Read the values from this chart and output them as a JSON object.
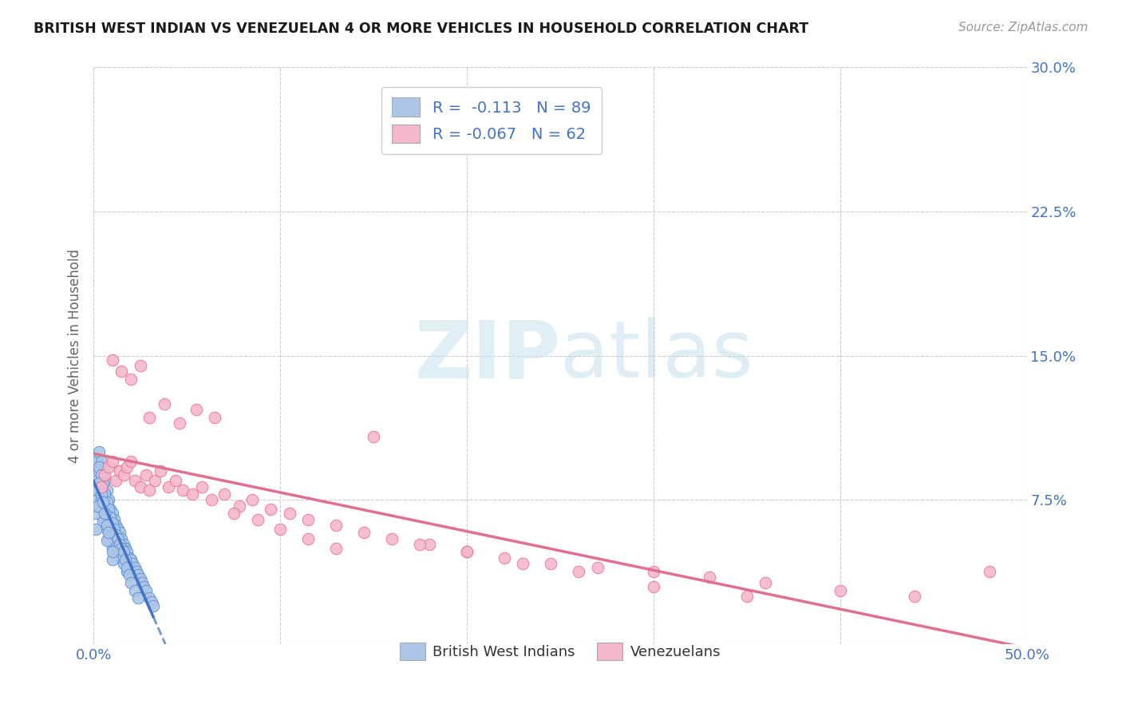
{
  "title": "BRITISH WEST INDIAN VS VENEZUELAN 4 OR MORE VEHICLES IN HOUSEHOLD CORRELATION CHART",
  "source": "Source: ZipAtlas.com",
  "ylabel": "4 or more Vehicles in Household",
  "xlim": [
    0.0,
    0.5
  ],
  "ylim": [
    0.0,
    0.3
  ],
  "xticks": [
    0.0,
    0.1,
    0.2,
    0.3,
    0.4,
    0.5
  ],
  "xticklabels": [
    "0.0%",
    "",
    "",
    "",
    "",
    "50.0%"
  ],
  "yticks": [
    0.0,
    0.075,
    0.15,
    0.225,
    0.3
  ],
  "yticklabels": [
    "",
    "7.5%",
    "15.0%",
    "22.5%",
    "30.0%"
  ],
  "blue_R": -0.113,
  "blue_N": 89,
  "pink_R": -0.067,
  "pink_N": 62,
  "blue_color": "#adc6e8",
  "pink_color": "#f5b8cb",
  "blue_edge_color": "#5b8fd4",
  "pink_edge_color": "#e87090",
  "blue_line_color": "#4472c4",
  "pink_line_color": "#e07090",
  "axis_color": "#4472c4",
  "watermark_color": "#cce4f0",
  "legend_label_blue": "British West Indians",
  "legend_label_pink": "Venezuelans",
  "blue_x": [
    0.001,
    0.002,
    0.002,
    0.003,
    0.003,
    0.003,
    0.004,
    0.004,
    0.004,
    0.005,
    0.005,
    0.005,
    0.006,
    0.006,
    0.006,
    0.007,
    0.007,
    0.007,
    0.008,
    0.008,
    0.008,
    0.009,
    0.009,
    0.01,
    0.01,
    0.01,
    0.011,
    0.011,
    0.012,
    0.012,
    0.013,
    0.013,
    0.014,
    0.014,
    0.015,
    0.015,
    0.016,
    0.016,
    0.017,
    0.018,
    0.018,
    0.019,
    0.02,
    0.021,
    0.022,
    0.023,
    0.024,
    0.025,
    0.026,
    0.027,
    0.028,
    0.03,
    0.031,
    0.032,
    0.001,
    0.002,
    0.003,
    0.003,
    0.004,
    0.005,
    0.005,
    0.006,
    0.007,
    0.007,
    0.008,
    0.009,
    0.01,
    0.01,
    0.011,
    0.012,
    0.013,
    0.014,
    0.015,
    0.016,
    0.017,
    0.018,
    0.019,
    0.02,
    0.022,
    0.024,
    0.001,
    0.002,
    0.003,
    0.004,
    0.005,
    0.006,
    0.007,
    0.008,
    0.01
  ],
  "blue_y": [
    0.075,
    0.095,
    0.085,
    0.1,
    0.09,
    0.08,
    0.095,
    0.085,
    0.075,
    0.09,
    0.08,
    0.07,
    0.085,
    0.075,
    0.065,
    0.08,
    0.07,
    0.06,
    0.075,
    0.065,
    0.055,
    0.07,
    0.06,
    0.068,
    0.058,
    0.05,
    0.065,
    0.055,
    0.062,
    0.052,
    0.06,
    0.05,
    0.058,
    0.048,
    0.055,
    0.045,
    0.052,
    0.042,
    0.05,
    0.048,
    0.038,
    0.045,
    0.044,
    0.042,
    0.04,
    0.038,
    0.036,
    0.034,
    0.032,
    0.03,
    0.028,
    0.024,
    0.022,
    0.02,
    0.068,
    0.08,
    0.092,
    0.072,
    0.088,
    0.084,
    0.064,
    0.078,
    0.074,
    0.054,
    0.07,
    0.066,
    0.063,
    0.044,
    0.06,
    0.057,
    0.055,
    0.052,
    0.05,
    0.048,
    0.044,
    0.04,
    0.036,
    0.032,
    0.028,
    0.024,
    0.06,
    0.072,
    0.084,
    0.078,
    0.074,
    0.068,
    0.062,
    0.058,
    0.048
  ],
  "pink_x": [
    0.004,
    0.006,
    0.008,
    0.01,
    0.012,
    0.014,
    0.016,
    0.018,
    0.02,
    0.022,
    0.025,
    0.028,
    0.03,
    0.033,
    0.036,
    0.04,
    0.044,
    0.048,
    0.053,
    0.058,
    0.063,
    0.07,
    0.078,
    0.085,
    0.095,
    0.105,
    0.115,
    0.13,
    0.145,
    0.16,
    0.18,
    0.2,
    0.22,
    0.245,
    0.27,
    0.3,
    0.33,
    0.36,
    0.4,
    0.44,
    0.01,
    0.015,
    0.02,
    0.025,
    0.03,
    0.038,
    0.046,
    0.055,
    0.065,
    0.075,
    0.088,
    0.1,
    0.115,
    0.13,
    0.15,
    0.175,
    0.2,
    0.23,
    0.26,
    0.3,
    0.35,
    0.48
  ],
  "pink_y": [
    0.082,
    0.088,
    0.092,
    0.095,
    0.085,
    0.09,
    0.088,
    0.092,
    0.095,
    0.085,
    0.082,
    0.088,
    0.08,
    0.085,
    0.09,
    0.082,
    0.085,
    0.08,
    0.078,
    0.082,
    0.075,
    0.078,
    0.072,
    0.075,
    0.07,
    0.068,
    0.065,
    0.062,
    0.058,
    0.055,
    0.052,
    0.048,
    0.045,
    0.042,
    0.04,
    0.038,
    0.035,
    0.032,
    0.028,
    0.025,
    0.148,
    0.142,
    0.138,
    0.145,
    0.118,
    0.125,
    0.115,
    0.122,
    0.118,
    0.068,
    0.065,
    0.06,
    0.055,
    0.05,
    0.108,
    0.052,
    0.048,
    0.042,
    0.038,
    0.03,
    0.025,
    0.038
  ]
}
